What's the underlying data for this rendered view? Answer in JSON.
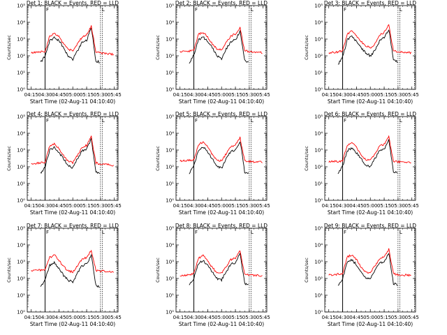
{
  "figure": {
    "xlabel": "Start Time (02-Aug-11 04:10:40)",
    "ylabel": "Counts/sec",
    "x_tick_labels": [
      "04:15",
      "04:30",
      "04:45",
      "05:00",
      "05:15",
      "05:30",
      "05:45"
    ],
    "y_tick_labels": [
      "10⁰",
      "10¹",
      "10²",
      "10³",
      "10⁴",
      "10⁵"
    ],
    "markers": {
      "left": "F",
      "right": "L"
    },
    "colors": {
      "events": "#000000",
      "lld": "#ff0000",
      "axes": "#000000",
      "background": "#ffffff"
    }
  },
  "chart_data": [
    {
      "type": "line",
      "title": "Det 1: BLACK = Events, RED = LLD",
      "x": [
        "04:15",
        "04:20",
        "04:25",
        "04:30",
        "04:35",
        "04:40",
        "04:45",
        "04:50",
        "04:55",
        "05:00",
        "05:05",
        "05:10",
        "05:15",
        "05:20",
        "05:25",
        "05:30",
        "05:35",
        "05:40",
        "05:45"
      ],
      "y_scale": "log",
      "ylim": [
        1,
        100000
      ],
      "x_range": [
        "04:10:40",
        "05:49"
      ],
      "series": [
        {
          "name": "Events",
          "color": "#000000",
          "values": [
            null,
            null,
            40,
            100,
            800,
            1200,
            800,
            300,
            100,
            60,
            200,
            600,
            800,
            5000,
            50,
            40,
            null,
            null,
            null
          ]
        },
        {
          "name": "LLD",
          "color": "#ff0000",
          "values": [
            150,
            160,
            170,
            180,
            1500,
            2200,
            1400,
            500,
            250,
            200,
            500,
            1300,
            1800,
            6000,
            180,
            150,
            140,
            130,
            120
          ]
        }
      ],
      "vlines": [
        "04:30",
        "05:30",
        "05:32",
        "05:48"
      ]
    },
    {
      "type": "line",
      "title": "Det 2: BLACK = Events, RED = LLD",
      "x": [
        "04:15",
        "04:20",
        "04:25",
        "04:30",
        "04:35",
        "04:40",
        "04:45",
        "04:50",
        "04:55",
        "05:00",
        "05:05",
        "05:10",
        "05:15",
        "05:20",
        "05:25",
        "05:30",
        "05:35",
        "05:40",
        "05:45"
      ],
      "y_scale": "log",
      "ylim": [
        1,
        100000
      ],
      "x_range": [
        "04:10:40",
        "05:49"
      ],
      "series": [
        {
          "name": "Events",
          "color": "#000000",
          "values": [
            null,
            null,
            40,
            120,
            900,
            1300,
            700,
            300,
            100,
            70,
            250,
            700,
            900,
            3000,
            50,
            40,
            null,
            null,
            null
          ]
        },
        {
          "name": "LLD",
          "color": "#ff0000",
          "values": [
            170,
            180,
            190,
            220,
            1900,
            2600,
            1300,
            500,
            250,
            220,
            600,
            1500,
            2000,
            5000,
            200,
            180,
            170,
            160,
            150
          ]
        }
      ],
      "vlines": [
        "04:30",
        "05:30",
        "05:32",
        "05:48"
      ]
    },
    {
      "type": "line",
      "title": "Det 3: BLACK = Events, RED = LLD",
      "x": [
        "04:15",
        "04:20",
        "04:25",
        "04:30",
        "04:35",
        "04:40",
        "04:45",
        "04:50",
        "04:55",
        "05:00",
        "05:05",
        "05:10",
        "05:15",
        "05:20",
        "05:25",
        "05:30",
        "05:35",
        "05:40",
        "05:45"
      ],
      "y_scale": "log",
      "ylim": [
        1,
        100000
      ],
      "x_range": [
        "04:10:40",
        "05:49"
      ],
      "series": [
        {
          "name": "Events",
          "color": "#000000",
          "values": [
            null,
            null,
            30,
            90,
            900,
            1500,
            700,
            300,
            150,
            100,
            200,
            800,
            1200,
            4000,
            60,
            40,
            null,
            null,
            null
          ]
        },
        {
          "name": "LLD",
          "color": "#ff0000",
          "values": [
            150,
            160,
            170,
            200,
            2000,
            3000,
            1500,
            700,
            400,
            300,
            500,
            1800,
            2500,
            7000,
            200,
            170,
            160,
            160,
            150
          ]
        }
      ],
      "vlines": [
        "04:30",
        "05:30",
        "05:32",
        "05:48"
      ]
    },
    {
      "type": "line",
      "title": "Det 4: BLACK = Events, RED = LLD",
      "x": [
        "04:15",
        "04:20",
        "04:25",
        "04:30",
        "04:35",
        "04:40",
        "04:45",
        "04:50",
        "04:55",
        "05:00",
        "05:05",
        "05:10",
        "05:15",
        "05:20",
        "05:25",
        "05:30",
        "05:35",
        "05:40",
        "05:45"
      ],
      "y_scale": "log",
      "ylim": [
        1,
        100000
      ],
      "x_range": [
        "04:10:40",
        "05:49"
      ],
      "series": [
        {
          "name": "Events",
          "color": "#000000",
          "values": [
            null,
            null,
            40,
            100,
            1000,
            1500,
            700,
            300,
            120,
            90,
            300,
            900,
            1100,
            4500,
            50,
            40,
            null,
            null,
            null
          ]
        },
        {
          "name": "LLD",
          "color": "#ff0000",
          "values": [
            150,
            160,
            170,
            190,
            1800,
            2400,
            1200,
            450,
            200,
            180,
            450,
            1400,
            1900,
            6500,
            170,
            150,
            140,
            130,
            120
          ]
        }
      ],
      "vlines": [
        "04:30",
        "05:30",
        "05:32",
        "05:48"
      ]
    },
    {
      "type": "line",
      "title": "Det 5: BLACK = Events, RED = LLD",
      "x": [
        "04:15",
        "04:20",
        "04:25",
        "04:30",
        "04:35",
        "04:40",
        "04:45",
        "04:50",
        "04:55",
        "05:00",
        "05:05",
        "05:10",
        "05:15",
        "05:20",
        "05:25",
        "05:30",
        "05:35",
        "05:40",
        "05:45"
      ],
      "y_scale": "log",
      "ylim": [
        1,
        100000
      ],
      "x_range": [
        "04:10:40",
        "05:49"
      ],
      "series": [
        {
          "name": "Events",
          "color": "#000000",
          "values": [
            null,
            null,
            40,
            120,
            1000,
            1600,
            800,
            300,
            110,
            80,
            300,
            800,
            1000,
            3500,
            50,
            40,
            null,
            null,
            null
          ]
        },
        {
          "name": "LLD",
          "color": "#ff0000",
          "values": [
            220,
            230,
            240,
            260,
            2100,
            3000,
            1500,
            550,
            250,
            230,
            600,
            1600,
            2100,
            5500,
            220,
            210,
            200,
            200,
            190
          ]
        }
      ],
      "vlines": [
        "04:30",
        "05:30",
        "05:32",
        "05:48"
      ]
    },
    {
      "type": "line",
      "title": "Det 6: BLACK = Events, RED = LLD",
      "x": [
        "04:15",
        "04:20",
        "04:25",
        "04:30",
        "04:35",
        "04:40",
        "04:45",
        "04:50",
        "04:55",
        "05:00",
        "05:05",
        "05:10",
        "05:15",
        "05:20",
        "05:25",
        "05:30",
        "05:35",
        "05:40",
        "05:45"
      ],
      "y_scale": "log",
      "ylim": [
        1,
        100000
      ],
      "x_range": [
        "04:10:40",
        "05:49"
      ],
      "series": [
        {
          "name": "Events",
          "color": "#000000",
          "values": [
            null,
            null,
            40,
            110,
            900,
            1400,
            700,
            300,
            120,
            100,
            300,
            900,
            1100,
            4000,
            50,
            40,
            null,
            null,
            null
          ]
        },
        {
          "name": "LLD",
          "color": "#ff0000",
          "values": [
            200,
            210,
            210,
            230,
            2000,
            2800,
            1400,
            550,
            270,
            240,
            600,
            1700,
            2200,
            6000,
            220,
            200,
            190,
            190,
            180
          ]
        }
      ],
      "vlines": [
        "04:30",
        "05:30",
        "05:32",
        "05:48"
      ]
    },
    {
      "type": "line",
      "title": "Det 7: BLACK = Events, RED = LLD",
      "x": [
        "04:15",
        "04:20",
        "04:25",
        "04:30",
        "04:35",
        "04:40",
        "04:45",
        "04:50",
        "04:55",
        "05:00",
        "05:05",
        "05:10",
        "05:15",
        "05:20",
        "05:25",
        "05:30",
        "05:35",
        "05:40",
        "05:45"
      ],
      "y_scale": "log",
      "ylim": [
        1,
        100000
      ],
      "x_range": [
        "04:10:40",
        "05:49"
      ],
      "series": [
        {
          "name": "Events",
          "color": "#000000",
          "values": [
            null,
            null,
            30,
            80,
            600,
            900,
            400,
            150,
            80,
            60,
            200,
            600,
            700,
            2500,
            40,
            30,
            null,
            null,
            null
          ]
        },
        {
          "name": "LLD",
          "color": "#ff0000",
          "values": [
            300,
            310,
            320,
            340,
            1800,
            2500,
            1200,
            500,
            280,
            250,
            550,
            1400,
            1800,
            5000,
            300,
            280,
            270,
            260,
            250
          ]
        }
      ],
      "vlines": [
        "04:30",
        "05:30",
        "05:32",
        "05:48"
      ]
    },
    {
      "type": "line",
      "title": "Det 8: BLACK = Events, RED = LLD",
      "x": [
        "04:15",
        "04:20",
        "04:25",
        "04:30",
        "04:35",
        "04:40",
        "04:45",
        "04:50",
        "04:55",
        "05:00",
        "05:05",
        "05:10",
        "05:15",
        "05:20",
        "05:25",
        "05:30",
        "05:35",
        "05:40",
        "05:45"
      ],
      "y_scale": "log",
      "ylim": [
        1,
        100000
      ],
      "x_range": [
        "04:10:40",
        "05:49"
      ],
      "series": [
        {
          "name": "Events",
          "color": "#000000",
          "values": [
            null,
            null,
            40,
            100,
            800,
            1200,
            600,
            250,
            100,
            80,
            250,
            700,
            900,
            3000,
            50,
            40,
            null,
            null,
            null
          ]
        },
        {
          "name": "LLD",
          "color": "#ff0000",
          "values": [
            150,
            160,
            170,
            190,
            1700,
            2300,
            1100,
            450,
            220,
            200,
            500,
            1300,
            1700,
            4500,
            170,
            160,
            150,
            150,
            140
          ]
        }
      ],
      "vlines": [
        "04:30",
        "05:30",
        "05:32",
        "05:48"
      ]
    },
    {
      "type": "line",
      "title": "Det 9: BLACK = Events, RED = LLD",
      "x": [
        "04:15",
        "04:20",
        "04:25",
        "04:30",
        "04:35",
        "04:40",
        "04:45",
        "04:50",
        "04:55",
        "05:00",
        "05:05",
        "05:10",
        "05:15",
        "05:20",
        "05:25",
        "05:30",
        "05:35",
        "05:40",
        "05:45"
      ],
      "y_scale": "log",
      "ylim": [
        1,
        100000
      ],
      "x_range": [
        "04:10:40",
        "05:49"
      ],
      "series": [
        {
          "name": "Events",
          "color": "#000000",
          "values": [
            null,
            null,
            40,
            100,
            900,
            1300,
            650,
            280,
            110,
            90,
            280,
            800,
            1000,
            3500,
            50,
            40,
            null,
            null,
            null
          ]
        },
        {
          "name": "LLD",
          "color": "#ff0000",
          "values": [
            160,
            170,
            180,
            200,
            1900,
            2600,
            1300,
            500,
            240,
            220,
            550,
            1500,
            2000,
            5500,
            190,
            170,
            160,
            160,
            150
          ]
        }
      ],
      "vlines": [
        "04:30",
        "05:30",
        "05:32",
        "05:48"
      ]
    }
  ]
}
